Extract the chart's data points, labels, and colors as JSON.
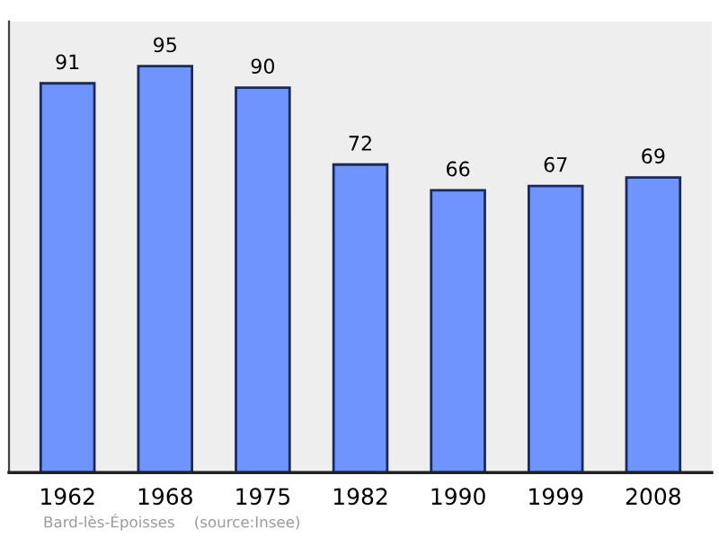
{
  "chart_data": {
    "type": "bar",
    "categories": [
      "1962",
      "1968",
      "1975",
      "1982",
      "1990",
      "1999",
      "2008"
    ],
    "values": [
      91,
      95,
      90,
      72,
      66,
      67,
      69
    ],
    "color": "#6f94fb",
    "data_labels": true,
    "grid": false,
    "annotations": [
      "Bard-lès-Époisses    (source:Insee)"
    ]
  }
}
